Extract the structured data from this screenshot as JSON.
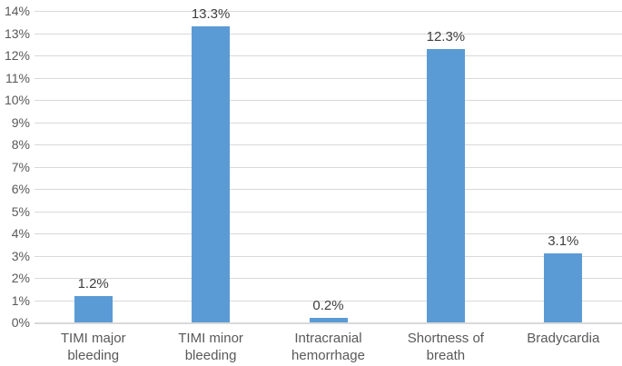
{
  "chart_data": {
    "type": "bar",
    "title": "",
    "xlabel": "",
    "ylabel": "",
    "categories": [
      "TIMI major bleeding",
      "TIMI minor bleeding",
      "Intracranial hemorrhage",
      "Shortness of breath",
      "Bradycardia"
    ],
    "values": [
      1.2,
      13.3,
      0.2,
      12.3,
      3.1
    ],
    "data_labels": [
      "1.2%",
      "13.3%",
      "0.2%",
      "12.3%",
      "3.1%"
    ],
    "y_ticks": [
      "0%",
      "1%",
      "2%",
      "3%",
      "4%",
      "5%",
      "6%",
      "7%",
      "8%",
      "9%",
      "10%",
      "11%",
      "12%",
      "13%",
      "14%"
    ],
    "ylim": [
      0,
      14
    ],
    "grid": true,
    "legend": false,
    "colors": {
      "bar": "#5B9BD5",
      "gridline": "#D9D9D9",
      "axis_line": "#D9D9D9",
      "tick_text": "#595959",
      "data_label_text": "#404040",
      "category_text": "#595959",
      "background": "#FFFFFF"
    }
  }
}
